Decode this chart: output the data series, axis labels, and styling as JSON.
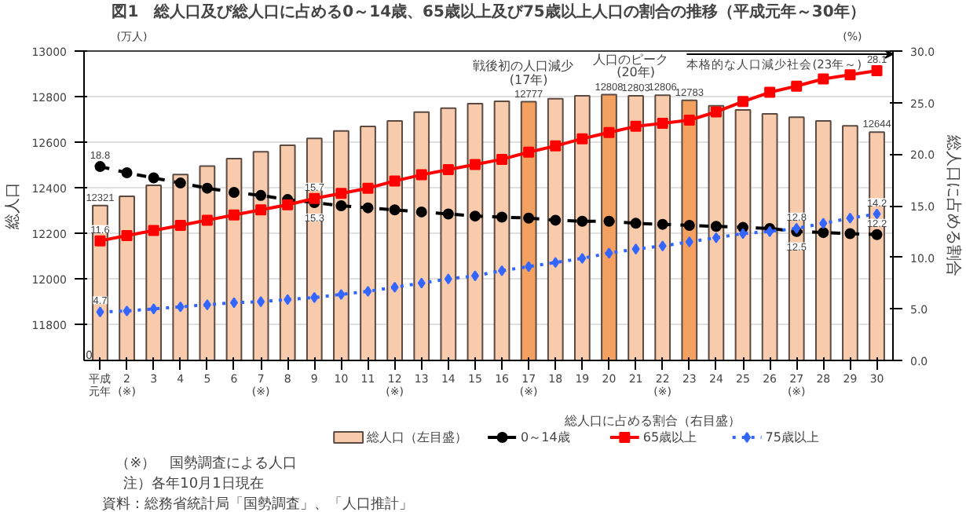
{
  "chart_data": {
    "type": "bar",
    "title": "図1　総人口及び総人口に占める0～14歳、65歳以上及び75歳以上人口の割合の推移（平成元年～30年）",
    "categories": [
      "平成元年",
      "2\n(※)",
      "3",
      "4",
      "5",
      "6",
      "7\n(※)",
      "8",
      "9",
      "10",
      "11",
      "12\n(※)",
      "13",
      "14",
      "15",
      "16",
      "17\n(※)",
      "18",
      "19",
      "20",
      "21",
      "22\n(※)",
      "23",
      "24",
      "25",
      "26",
      "27\n(※)",
      "28",
      "29",
      "30"
    ],
    "series": [
      {
        "name": "総人口（左目盛）",
        "color": "#f8cbad",
        "colors": [
          "#f8cbad",
          "#f8cbad",
          "#f8cbad",
          "#f8cbad",
          "#f8cbad",
          "#f8cbad",
          "#f8cbad",
          "#f8cbad",
          "#f8cbad",
          "#f8cbad",
          "#f8cbad",
          "#f8cbad",
          "#f8cbad",
          "#f8cbad",
          "#f8cbad",
          "#f8cbad",
          "#f4a060",
          "#f8cbad",
          "#f8cbad",
          "#f4a060",
          "#f8cbad",
          "#f8cbad",
          "#f4a060",
          "#f8cbad",
          "#f8cbad",
          "#f8cbad",
          "#f8cbad",
          "#f8cbad",
          "#f8cbad",
          "#f8cbad"
        ],
        "values": [
          12321,
          12361,
          12410,
          12457,
          12494,
          12527,
          12557,
          12586,
          12616,
          12649,
          12669,
          12693,
          12732,
          12749,
          12769,
          12779,
          12777,
          12790,
          12803,
          12808,
          12803,
          12806,
          12783,
          12759,
          12741,
          12724,
          12709,
          12693,
          12671,
          12644
        ],
        "value_labels": [
          "12321",
          null,
          null,
          null,
          null,
          null,
          null,
          null,
          null,
          null,
          null,
          null,
          null,
          null,
          null,
          null,
          "12777",
          null,
          null,
          "12808",
          "12803",
          "12806",
          "12783",
          null,
          null,
          null,
          null,
          null,
          null,
          "12644"
        ]
      },
      {
        "name": "0～14歳",
        "type": "line",
        "axis": "y2",
        "color": "#000000",
        "line_style": "dashed",
        "marker": "circle",
        "values": [
          18.8,
          18.2,
          17.7,
          17.2,
          16.7,
          16.3,
          16.0,
          15.6,
          15.3,
          15.0,
          14.8,
          14.6,
          14.4,
          14.2,
          14.0,
          13.9,
          13.8,
          13.6,
          13.5,
          13.5,
          13.3,
          13.2,
          13.1,
          13.0,
          12.9,
          12.8,
          12.5,
          12.4,
          12.3,
          12.2
        ],
        "value_labels": [
          "18.8",
          null,
          null,
          null,
          null,
          null,
          null,
          null,
          "15.3",
          null,
          null,
          null,
          null,
          null,
          null,
          null,
          null,
          null,
          null,
          null,
          null,
          null,
          null,
          null,
          null,
          null,
          "12.5",
          null,
          null,
          "12.2"
        ]
      },
      {
        "name": "65歳以上",
        "type": "line",
        "axis": "y2",
        "color": "#ff0000",
        "line_style": "solid",
        "marker": "square",
        "values": [
          11.6,
          12.1,
          12.6,
          13.1,
          13.6,
          14.1,
          14.6,
          15.1,
          15.7,
          16.2,
          16.7,
          17.4,
          18.0,
          18.5,
          19.0,
          19.5,
          20.2,
          20.8,
          21.5,
          22.1,
          22.7,
          23.0,
          23.3,
          24.1,
          25.1,
          26.0,
          26.6,
          27.3,
          27.7,
          28.1
        ],
        "value_labels": [
          "11.6",
          null,
          null,
          null,
          null,
          null,
          null,
          null,
          "15.7",
          null,
          null,
          null,
          null,
          null,
          null,
          null,
          null,
          null,
          null,
          null,
          null,
          null,
          null,
          null,
          null,
          null,
          null,
          null,
          null,
          "28.1"
        ]
      },
      {
        "name": "75歳以上",
        "type": "line",
        "axis": "y2",
        "color": "#3366ff",
        "line_style": "dotted",
        "marker": "diamond",
        "values": [
          4.7,
          4.8,
          5.0,
          5.2,
          5.4,
          5.6,
          5.7,
          5.9,
          6.1,
          6.4,
          6.7,
          7.1,
          7.5,
          7.9,
          8.2,
          8.7,
          9.1,
          9.5,
          9.9,
          10.4,
          10.8,
          11.1,
          11.5,
          11.9,
          12.3,
          12.5,
          12.8,
          13.3,
          13.8,
          14.2
        ],
        "value_labels": [
          "4.7",
          null,
          null,
          null,
          null,
          null,
          null,
          null,
          null,
          null,
          null,
          null,
          null,
          null,
          null,
          null,
          null,
          null,
          null,
          null,
          null,
          null,
          null,
          null,
          null,
          null,
          "12.8",
          null,
          null,
          "14.2"
        ]
      }
    ],
    "ylabel": "総人口",
    "y2label": "総人口に占める割合",
    "ylim": [
      11640,
      13000
    ],
    "yticks": [
      11800,
      12000,
      12200,
      12400,
      12600,
      12800,
      13000
    ],
    "y2lim": [
      0,
      30
    ],
    "y2ticks": [
      {
        "value": 0,
        "label": "0.0"
      },
      {
        "value": 5,
        "label": "5.0"
      },
      {
        "value": 10,
        "label": "10.0"
      },
      {
        "value": 15,
        "label": "15.0"
      },
      {
        "value": 20,
        "label": "20.0"
      },
      {
        "value": 25,
        "label": "25.0"
      },
      {
        "value": 30,
        "label": "30.0"
      }
    ],
    "grid": "y",
    "legend": "bottom",
    "legend_title": "総人口に占める割合（右目盛）",
    "annotations": [
      "(万人)",
      "(%)",
      "0",
      "（※）　国勢調査による人口",
      "注）各年10月1日現在",
      "資料：総務省統計局「国勢調査」、「人口推計」",
      "戦後初の人口減少",
      "(17年)",
      "人口のピーク",
      "(20年)",
      "本格的な人口減少社会(23年～)"
    ]
  }
}
